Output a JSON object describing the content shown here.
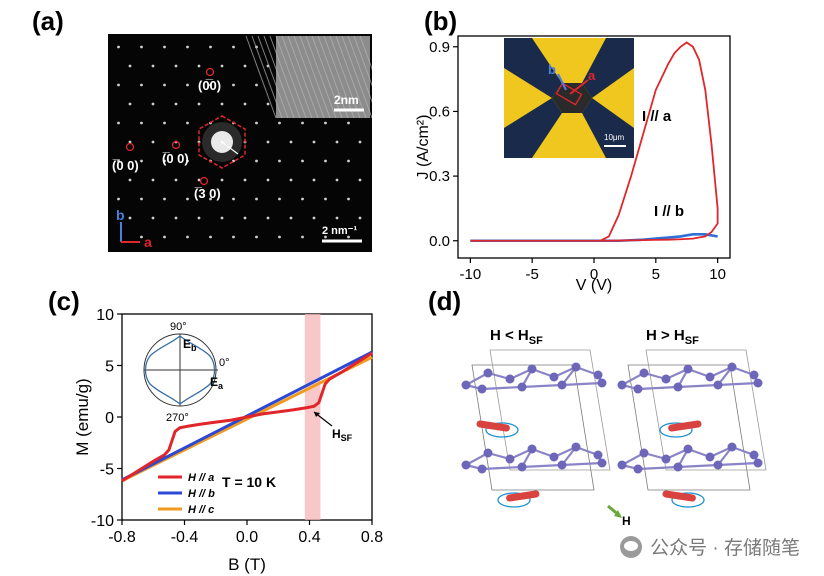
{
  "panels": {
    "a": {
      "label": "(a)",
      "scale_top": "2nm",
      "scale_bottom": "2 nm⁻¹",
      "axis_b": "b",
      "axis_a": "a",
      "spots": {
        "s060": "(0̅0)",
        "s400": "(̅0 0)",
        "s200": "(̅0 0)",
        "s130": "(̅3 0)"
      }
    },
    "b": {
      "label": "(b)",
      "inset_b": "b",
      "inset_a": "a",
      "inset_scale": "10μm"
    },
    "c": {
      "label": "(c)",
      "hsf": "H",
      "hsf_sub": "SF",
      "inset_90": "90°",
      "inset_0": "0°",
      "inset_270": "270°",
      "inset_eb": "E",
      "inset_eb_sub": "b",
      "inset_ea": "E",
      "inset_ea_sub": "a"
    },
    "d": {
      "label": "(d)",
      "left_title": "H < H",
      "left_title_sub": "SF",
      "right_title": "H > H",
      "right_title_sub": "SF",
      "field": "H"
    }
  },
  "watermark": {
    "text": "公众号 · 存储随笔"
  },
  "chart_data": [
    {
      "type": "line",
      "panel": "b",
      "xlabel": "V (V)",
      "ylabel": "J (A/cm²)",
      "xlim": [
        -11,
        11
      ],
      "ylim": [
        -0.08,
        0.95
      ],
      "xticks": [
        -10,
        -5,
        0,
        5,
        10
      ],
      "yticks": [
        0.0,
        0.3,
        0.6,
        0.9
      ],
      "series": [
        {
          "name": "I // a",
          "color": "#e0262a",
          "x": [
            -10,
            -2,
            0.5,
            1.2,
            2,
            3,
            4,
            5,
            6,
            6.5,
            7,
            7.5,
            8,
            8.5,
            9,
            9.5,
            10,
            10,
            9.5,
            9,
            8.5,
            8,
            7,
            6,
            5,
            4,
            3,
            2,
            1,
            0.5,
            -2,
            -10
          ],
          "y": [
            0.0,
            0.0,
            0.0,
            0.02,
            0.12,
            0.3,
            0.5,
            0.7,
            0.82,
            0.87,
            0.9,
            0.92,
            0.9,
            0.84,
            0.7,
            0.45,
            0.15,
            0.08,
            0.04,
            0.02,
            0.015,
            0.01,
            0.007,
            0.005,
            0.004,
            0.003,
            0.002,
            0.001,
            0.0,
            0.0,
            0.0,
            0.0
          ]
        },
        {
          "name": "I // b",
          "color": "#2f6fd6",
          "x": [
            -10,
            -8,
            -6,
            -4,
            -2,
            0,
            2,
            4,
            5,
            6,
            7,
            8,
            9,
            10
          ],
          "y": [
            0.0,
            0.0,
            0.0,
            0.0,
            0.0,
            0.0,
            0.0,
            0.005,
            0.01,
            0.015,
            0.02,
            0.03,
            0.03,
            0.02
          ]
        }
      ]
    },
    {
      "type": "line",
      "panel": "c",
      "xlabel": "B (T)",
      "ylabel": "M (emu/g)",
      "annotation": "T = 10 K",
      "xlim": [
        -0.8,
        0.8
      ],
      "ylim": [
        -10,
        10
      ],
      "xticks": [
        -0.8,
        -0.4,
        0.0,
        0.4,
        0.8
      ],
      "yticks": [
        -10,
        -5,
        0,
        5,
        10
      ],
      "highlight_x": [
        0.37,
        0.47
      ],
      "legend_position": "bottom-left",
      "series": [
        {
          "name": "H // a",
          "color": "#e0262a",
          "x": [
            -0.8,
            -0.6,
            -0.53,
            -0.5,
            -0.48,
            -0.46,
            -0.43,
            -0.38,
            -0.3,
            -0.2,
            -0.1,
            0.0,
            0.1,
            0.2,
            0.3,
            0.38,
            0.43,
            0.46,
            0.48,
            0.5,
            0.53,
            0.6,
            0.8
          ],
          "y": [
            -6.2,
            -4.3,
            -3.7,
            -3.2,
            -2.3,
            -1.4,
            -1.05,
            -0.9,
            -0.7,
            -0.5,
            -0.3,
            0.0,
            0.3,
            0.5,
            0.7,
            0.9,
            1.05,
            1.4,
            2.3,
            3.2,
            3.7,
            4.3,
            6.2
          ]
        },
        {
          "name": "H // b",
          "color": "#2b49d6",
          "x": [
            -0.8,
            0.8
          ],
          "y": [
            -6.1,
            6.3
          ]
        },
        {
          "name": "H // c",
          "color": "#f29a1f",
          "x": [
            -0.8,
            0.8
          ],
          "y": [
            -6.2,
            5.8
          ]
        }
      ]
    }
  ]
}
